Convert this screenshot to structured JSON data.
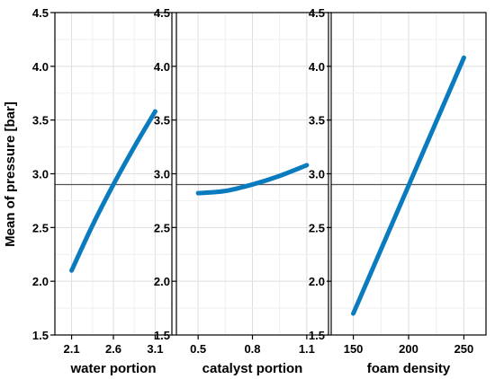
{
  "chart_data": {
    "type": "line",
    "ylabel": "Mean of pressure [bar]",
    "ylim": [
      1.5,
      4.5
    ],
    "yticks": [
      "1.5",
      "2.0",
      "2.5",
      "3.0",
      "3.5",
      "4.0",
      "4.5"
    ],
    "reference_line": 2.9,
    "grid": true,
    "line_color": "#0a7bbf",
    "panels": [
      {
        "xlabel": "water portion",
        "xlim": [
          1.9,
          3.3
        ],
        "xticks": [
          "2.1",
          "2.6",
          "3.1"
        ],
        "x": [
          2.1,
          2.35,
          2.6,
          2.85,
          3.1
        ],
        "y": [
          2.1,
          2.52,
          2.9,
          3.25,
          3.58
        ]
      },
      {
        "xlabel": "catalyst portion",
        "xlim": [
          0.38,
          1.22
        ],
        "xticks": [
          "0.5",
          "0.8",
          "1.1"
        ],
        "x": [
          0.5,
          0.65,
          0.8,
          0.95,
          1.1
        ],
        "y": [
          2.82,
          2.84,
          2.9,
          2.98,
          3.08
        ]
      },
      {
        "xlabel": "foam density",
        "xlim": [
          130,
          270
        ],
        "xticks": [
          "150",
          "200",
          "250"
        ],
        "x": [
          150,
          250
        ],
        "y": [
          1.7,
          4.08
        ]
      }
    ]
  }
}
